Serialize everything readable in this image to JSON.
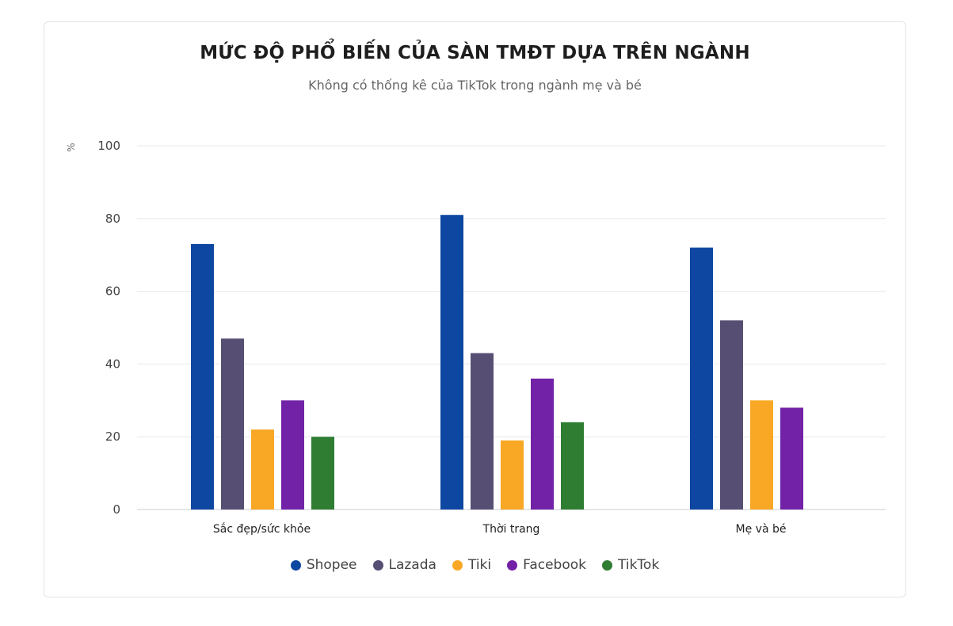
{
  "chart_data": {
    "type": "bar",
    "title": "MỨC ĐỘ PHỔ BIẾN CỦA SÀN TMĐT DỰA TRÊN NGÀNH",
    "subtitle": "Không có thống kê của TikTok trong ngành mẹ và bé",
    "y_unit": "%",
    "ylim": [
      0,
      100
    ],
    "yticks": [
      "0",
      "20",
      "40",
      "60",
      "80",
      "100"
    ],
    "ytick_values": [
      0,
      20,
      40,
      60,
      80,
      100
    ],
    "grid": true,
    "legend_position": "bottom",
    "categories": [
      "Sắc đẹp/sức khỏe",
      "Thời trang",
      "Mẹ và bé"
    ],
    "series": [
      {
        "name": "Shopee",
        "color": "#0d47a1",
        "values": [
          73,
          81,
          72
        ]
      },
      {
        "name": "Lazada",
        "color": "#574f73",
        "values": [
          47,
          43,
          52
        ]
      },
      {
        "name": "Tiki",
        "color": "#f9a825",
        "values": [
          22,
          19,
          30
        ]
      },
      {
        "name": "Facebook",
        "color": "#7222a6",
        "values": [
          30,
          36,
          28
        ]
      },
      {
        "name": "TikTok",
        "color": "#2e7d32",
        "values": [
          20,
          24,
          null
        ]
      }
    ]
  }
}
